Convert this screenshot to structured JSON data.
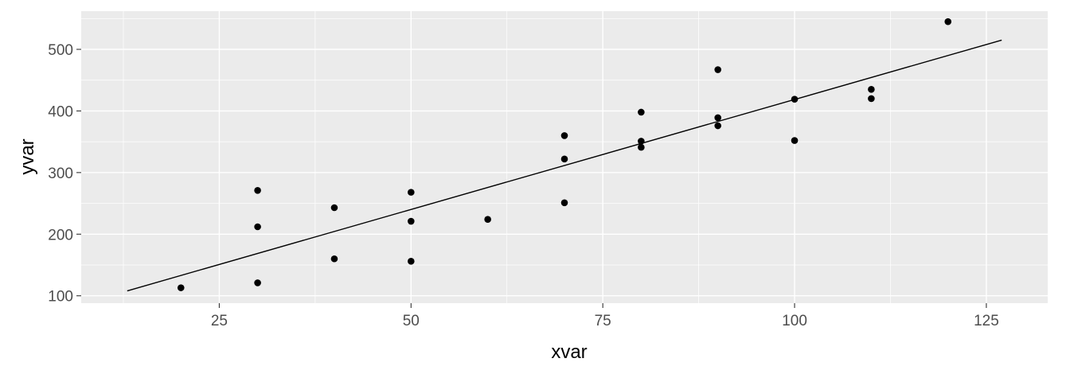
{
  "chart_data": {
    "type": "scatter",
    "title": "",
    "xlabel": "xvar",
    "ylabel": "yvar",
    "xlim": [
      7,
      133
    ],
    "ylim": [
      88,
      562
    ],
    "x_ticks": [
      25,
      50,
      75,
      100,
      125
    ],
    "y_ticks": [
      100,
      200,
      300,
      400,
      500
    ],
    "x_tick_labels": [
      "25",
      "50",
      "75",
      "100",
      "125"
    ],
    "y_tick_labels": [
      "100",
      "200",
      "300",
      "400",
      "500"
    ],
    "grid": true,
    "legend": "none",
    "point_color": "#000000",
    "panel_color": "#ebebeb",
    "points": [
      {
        "x": 20,
        "y": 113
      },
      {
        "x": 30,
        "y": 121
      },
      {
        "x": 30,
        "y": 212
      },
      {
        "x": 30,
        "y": 271
      },
      {
        "x": 40,
        "y": 160
      },
      {
        "x": 40,
        "y": 243
      },
      {
        "x": 50,
        "y": 156
      },
      {
        "x": 50,
        "y": 221
      },
      {
        "x": 50,
        "y": 268
      },
      {
        "x": 60,
        "y": 224
      },
      {
        "x": 70,
        "y": 251
      },
      {
        "x": 70,
        "y": 322
      },
      {
        "x": 70,
        "y": 360
      },
      {
        "x": 80,
        "y": 341
      },
      {
        "x": 80,
        "y": 351
      },
      {
        "x": 80,
        "y": 398
      },
      {
        "x": 90,
        "y": 376
      },
      {
        "x": 90,
        "y": 389
      },
      {
        "x": 90,
        "y": 467
      },
      {
        "x": 100,
        "y": 352
      },
      {
        "x": 100,
        "y": 419
      },
      {
        "x": 110,
        "y": 420
      },
      {
        "x": 110,
        "y": 435
      },
      {
        "x": 120,
        "y": 545
      }
    ],
    "fit_line": {
      "x": [
        13,
        127
      ],
      "y": [
        108,
        515
      ]
    }
  }
}
